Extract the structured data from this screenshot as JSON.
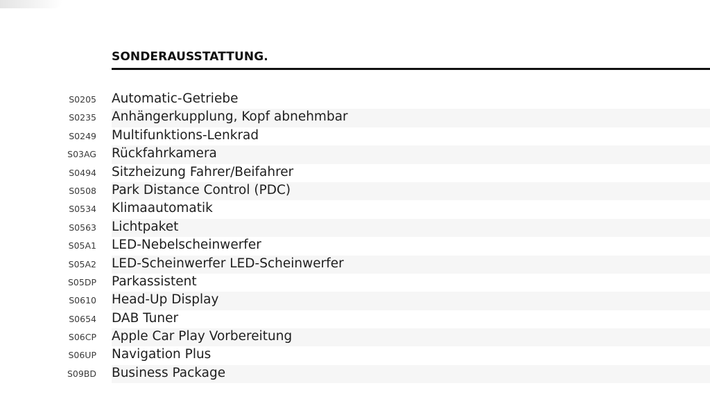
{
  "section": {
    "title": "SONDERAUSSTATTUNG."
  },
  "options": [
    {
      "code": "S0205",
      "name": "Automatic-Getriebe"
    },
    {
      "code": "S0235",
      "name": "Anhängerkupplung, Kopf abnehmbar"
    },
    {
      "code": "S0249",
      "name": "Multifunktions-Lenkrad"
    },
    {
      "code": "S03AG",
      "name": "Rückfahrkamera"
    },
    {
      "code": "S0494",
      "name": "Sitzheizung Fahrer/Beifahrer"
    },
    {
      "code": "S0508",
      "name": "Park Distance Control (PDC)"
    },
    {
      "code": "S0534",
      "name": "Klimaautomatik"
    },
    {
      "code": "S0563",
      "name": "Lichtpaket"
    },
    {
      "code": "S05A1",
      "name": "LED-Nebelscheinwerfer"
    },
    {
      "code": "S05A2",
      "name": "LED-Scheinwerfer LED-Scheinwerfer"
    },
    {
      "code": "S05DP",
      "name": "Parkassistent"
    },
    {
      "code": "S0610",
      "name": "Head-Up Display"
    },
    {
      "code": "S0654",
      "name": "DAB Tuner"
    },
    {
      "code": "S06CP",
      "name": "Apple Car Play Vorbereitung"
    },
    {
      "code": "S06UP",
      "name": "Navigation Plus"
    },
    {
      "code": "S09BD",
      "name": "Business Package"
    }
  ],
  "colors": {
    "text": "#1e1e1e",
    "rule": "#111111",
    "stripe": "#f6f6f6",
    "background": "#ffffff"
  }
}
